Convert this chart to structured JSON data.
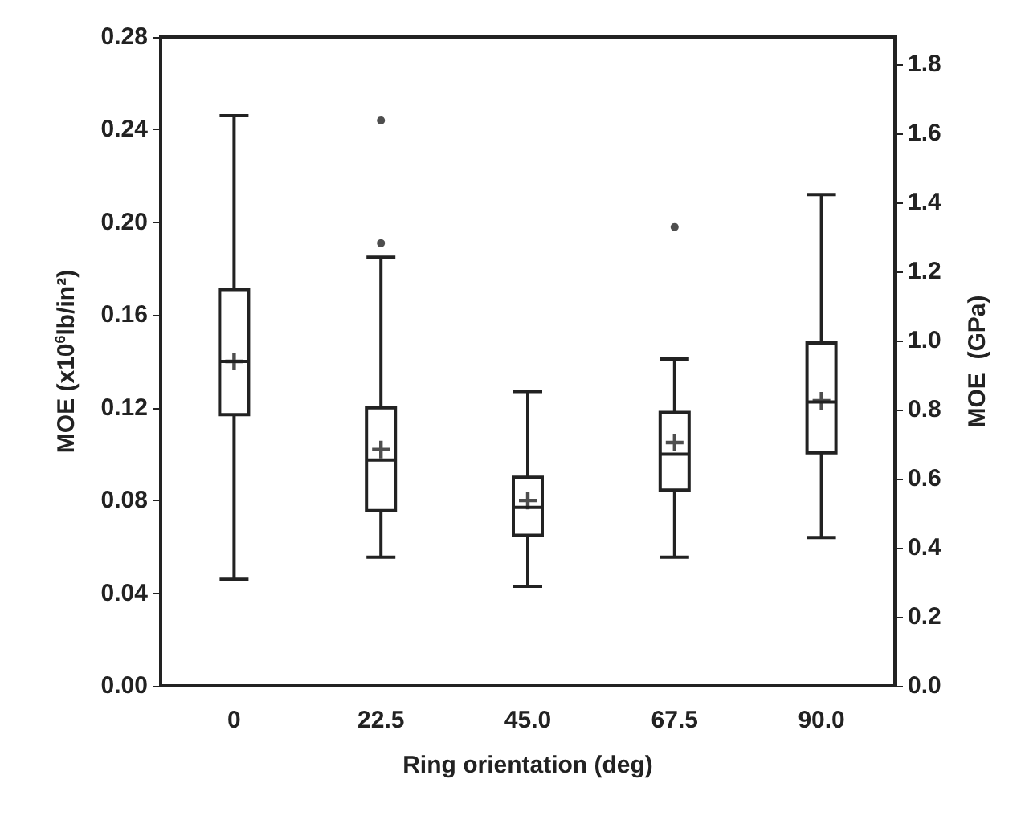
{
  "chart_data": {
    "type": "box",
    "xlabel": "Ring orientation (deg)",
    "ylabel": "MOE (x10$^{6}$lb/in²)",
    "y2label": "MOE  (GPa)",
    "categories": [
      "0",
      "22.5",
      "45.0",
      "67.5",
      "90.0"
    ],
    "boxes": [
      {
        "low": 0.046,
        "q1": 0.117,
        "median": 0.14,
        "q3": 0.171,
        "high": 0.246,
        "mean": 0.14
      },
      {
        "low": 0.0555,
        "q1": 0.0756,
        "median": 0.0975,
        "q3": 0.12,
        "high": 0.185,
        "mean": 0.102,
        "outliers": [
          0.244,
          0.191
        ]
      },
      {
        "low": 0.043,
        "q1": 0.065,
        "median": 0.077,
        "q3": 0.09,
        "high": 0.127,
        "mean": 0.08
      },
      {
        "low": 0.0555,
        "q1": 0.0845,
        "median": 0.1,
        "q3": 0.118,
        "high": 0.141,
        "mean": 0.105,
        "outliers": [
          0.198
        ]
      },
      {
        "low": 0.064,
        "q1": 0.1006,
        "median": 0.1225,
        "q3": 0.148,
        "high": 0.212,
        "mean": 0.123
      }
    ],
    "color": "#222222",
    "ylim": [
      0,
      0.28
    ],
    "yticks": [
      {
        "value": 0,
        "label": "0.00"
      },
      0.04,
      0.08,
      0.12,
      0.16,
      {
        "value": 0.2,
        "label": "0.20"
      },
      0.24,
      0.28
    ],
    "y2lim": [
      0,
      1.88
    ],
    "y2ticks": [
      {
        "value": 0,
        "label": "0.0"
      },
      0.2,
      0.4,
      0.6,
      0.8,
      {
        "value": 1,
        "label": "1.0"
      },
      1.2,
      1.4,
      1.6,
      1.8
    ],
    "grid": false,
    "legend": false
  }
}
